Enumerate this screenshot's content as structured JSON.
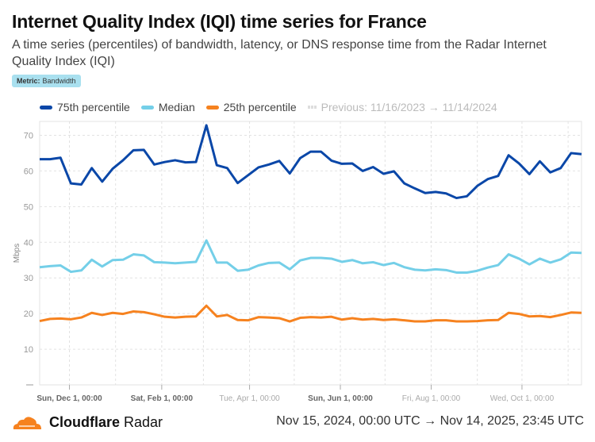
{
  "header": {
    "title": "Internet Quality Index (IQI) time series for France",
    "subtitle": "A time series (percentiles) of bandwidth, latency, or DNS response time from the Radar Internet Quality Index (IQI)"
  },
  "badge": {
    "label": "Metric:",
    "value": "Bandwidth"
  },
  "legend": {
    "previous": "Previous: 11/16/2023 → 11/14/2024"
  },
  "footer": {
    "brand_bold": "Cloudflare",
    "brand_rest": " Radar",
    "range": "Nov 15, 2024, 00:00 UTC → Nov 14, 2025, 23:45 UTC"
  },
  "chart_data": {
    "type": "line",
    "title": "Internet Quality Index (IQI) time series for France",
    "ylabel": "Mbps",
    "xlabel": "",
    "ylim": [
      0,
      73
    ],
    "yticks": [
      10,
      20,
      30,
      40,
      50,
      60,
      70
    ],
    "grid": true,
    "legend_position": "top",
    "x_start": "2024-11-11",
    "x_step_days": 7,
    "xtick_labels": [
      {
        "date": "2024-12-01",
        "label": "Sun, Dec 1, 00:00",
        "bold": true
      },
      {
        "date": "2025-02-01",
        "label": "Sat, Feb 1, 00:00",
        "bold": true
      },
      {
        "date": "2025-04-01",
        "label": "Tue, Apr 1, 00:00",
        "bold": false
      },
      {
        "date": "2025-06-01",
        "label": "Sun, Jun 1, 00:00",
        "bold": true
      },
      {
        "date": "2025-08-01",
        "label": "Fri, Aug 1, 00:00",
        "bold": false
      },
      {
        "date": "2025-10-01",
        "label": "Wed, Oct 1, 00:00",
        "bold": false
      }
    ],
    "series": [
      {
        "name": "75th percentile",
        "color": "#0a47a8",
        "values": [
          63.3,
          63.3,
          63.7,
          56.5,
          56.2,
          60.8,
          57,
          60.6,
          63,
          65.8,
          65.9,
          61.8,
          62.5,
          63,
          62.4,
          62.5,
          72.8,
          61.6,
          60.8,
          56.6,
          58.8,
          61,
          61.8,
          62.8,
          59.3,
          63.6,
          65.4,
          65.4,
          62.9,
          62,
          62.1,
          60,
          61.1,
          59.2,
          59.9,
          56.5,
          55.1,
          53.8,
          54.1,
          53.7,
          52.4,
          52.9,
          55.8,
          57.7,
          58.6,
          64.4,
          62.1,
          59.1,
          62.7,
          59.6,
          60.8,
          65,
          64.7
        ]
      },
      {
        "name": "Median",
        "color": "#74cfe8",
        "values": [
          33,
          33.3,
          33.5,
          31.7,
          32.1,
          35.1,
          33.2,
          35,
          35.1,
          36.6,
          36.3,
          34.4,
          34.3,
          34.1,
          34.3,
          34.5,
          40.5,
          34.3,
          34.3,
          32,
          32.3,
          33.5,
          34.2,
          34.3,
          32.4,
          34.9,
          35.6,
          35.6,
          35.4,
          34.5,
          35,
          34.1,
          34.4,
          33.6,
          34.2,
          33,
          32.3,
          32.1,
          32.4,
          32.2,
          31.5,
          31.5,
          32,
          32.9,
          33.6,
          36.6,
          35.4,
          33.8,
          35.4,
          34.3,
          35.2,
          37.1,
          37
        ]
      },
      {
        "name": "25th percentile",
        "color": "#f6821f",
        "values": [
          17.9,
          18.5,
          18.6,
          18.4,
          18.9,
          20.2,
          19.6,
          20.2,
          19.9,
          20.6,
          20.4,
          19.8,
          19.1,
          18.9,
          19.1,
          19.2,
          22.2,
          19.2,
          19.6,
          18.2,
          18.1,
          19,
          18.9,
          18.7,
          17.8,
          18.8,
          19,
          18.9,
          19.1,
          18.3,
          18.7,
          18.3,
          18.5,
          18.2,
          18.4,
          18.1,
          17.8,
          17.8,
          18.1,
          18.1,
          17.8,
          17.8,
          17.9,
          18.1,
          18.2,
          20.2,
          19.9,
          19.2,
          19.3,
          19,
          19.6,
          20.3,
          20.2
        ]
      }
    ]
  }
}
